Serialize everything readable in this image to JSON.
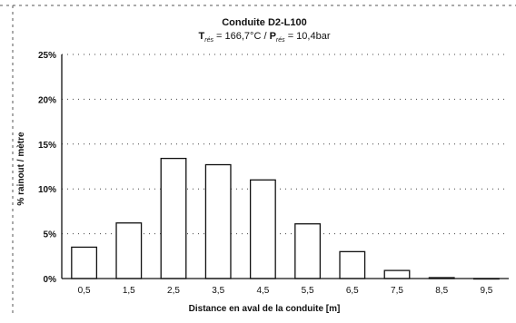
{
  "chart_data": {
    "type": "bar",
    "title": "Conduite D2-L100",
    "subtitle": {
      "t_symbol": "T",
      "t_subscript": "rés",
      "t_value": " = 166,7°C / ",
      "p_symbol": "P",
      "p_subscript": "rés",
      "p_value": " = 10,4bar"
    },
    "xlabel": "Distance en aval de la conduite [m]",
    "ylabel": "% rainout / mètre",
    "categories": [
      "0,5",
      "1,5",
      "2,5",
      "3,5",
      "4,5",
      "5,5",
      "6,5",
      "7,5",
      "8,5",
      "9,5"
    ],
    "values": [
      3.5,
      6.2,
      13.4,
      12.7,
      11.0,
      6.1,
      3.0,
      0.9,
      0.1,
      0.0
    ],
    "ylim": [
      0,
      25
    ],
    "yticks": [
      0,
      5,
      10,
      15,
      20,
      25
    ],
    "ytick_labels": [
      "0%",
      "5%",
      "10%",
      "15%",
      "20%",
      "25%"
    ],
    "grid": true,
    "legend": "none"
  }
}
